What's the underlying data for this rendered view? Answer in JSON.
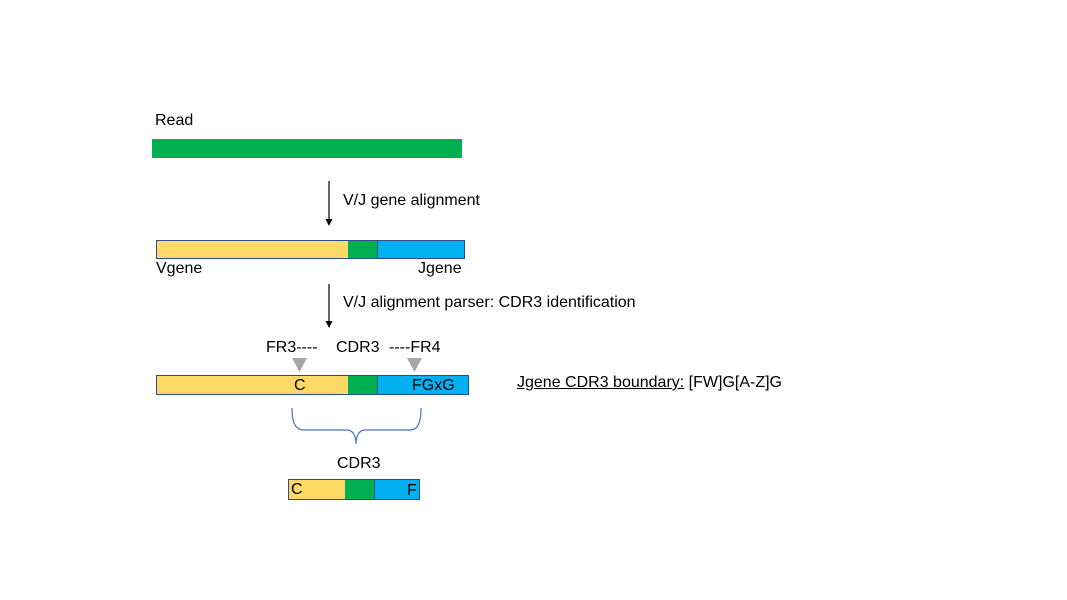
{
  "colors": {
    "green": "#00B050",
    "yellow": "#FFD966",
    "blue": "#00B0F0",
    "outline": "#2B4F8A",
    "marker": "#A6A6A6",
    "brace": "#4A72C4"
  },
  "read": {
    "label": "Read"
  },
  "step1": {
    "label": "V/J gene alignment"
  },
  "aligned": {
    "v_label": "Vgene",
    "j_label": "Jgene"
  },
  "step2": {
    "label": "V/J alignment parser: CDR3 identification"
  },
  "annotated": {
    "fr3_label": "FR3----",
    "cdr3_label": "CDR3",
    "fr4_label": "----FR4",
    "v_motif": "C",
    "j_motif": "FGxG",
    "boundary_note_prefix": "Jgene CDR3 boundary:",
    "boundary_note_pattern": "[FW]G[A-Z]G"
  },
  "result": {
    "label": "CDR3",
    "start_letter": "C",
    "end_letter": "F"
  },
  "icons": [
    "down-arrow-icon",
    "triangle-marker-icon",
    "curly-brace-icon"
  ]
}
